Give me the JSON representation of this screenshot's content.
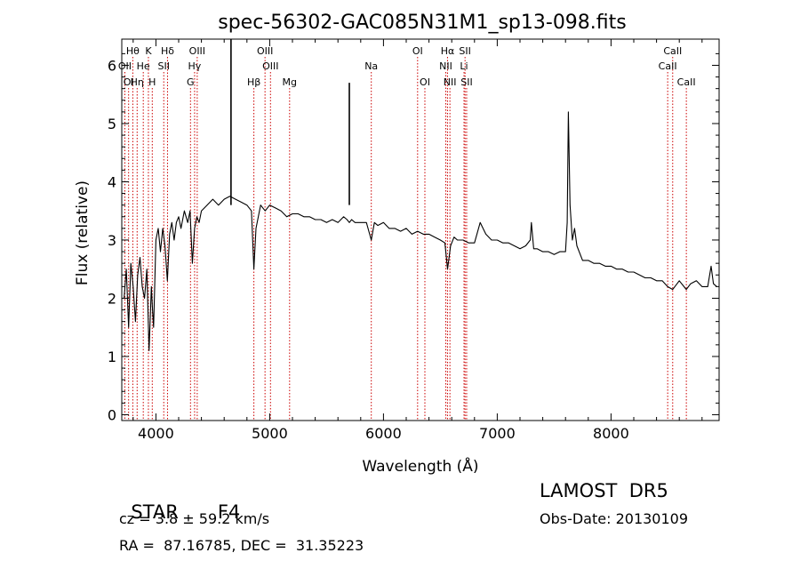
{
  "chart_data": {
    "type": "line",
    "title": "spec-56302-GAC085N31M1_sp13-098.fits",
    "xlabel": "Wavelength (Å)",
    "ylabel": "Flux (relative)",
    "xlim": [
      3700,
      8950
    ],
    "ylim": [
      -0.1,
      6.45
    ],
    "xticks": [
      4000,
      5000,
      6000,
      7000,
      8000
    ],
    "yticks": [
      0,
      1,
      2,
      3,
      4,
      5,
      6
    ],
    "grid": false,
    "line_color": "#000000",
    "marker_color": "#cc0000",
    "series": [
      {
        "x": [
          3720,
          3740,
          3760,
          3780,
          3800,
          3820,
          3840,
          3860,
          3880,
          3900,
          3920,
          3940,
          3960,
          3970,
          3980,
          4000,
          4020,
          4040,
          4060,
          4080,
          4101,
          4120,
          4140,
          4160,
          4180,
          4200,
          4220,
          4250,
          4280,
          4300,
          4320,
          4340,
          4360,
          4380,
          4400,
          4450,
          4500,
          4550,
          4600,
          4650,
          4700,
          4750,
          4800,
          4840,
          4861,
          4880,
          4920,
          4960,
          5000,
          5050,
          5100,
          5150,
          5200,
          5250,
          5300,
          5350,
          5400,
          5450,
          5500,
          5550,
          5600,
          5650,
          5680,
          5700,
          5720,
          5750,
          5800,
          5850,
          5893,
          5920,
          5950,
          6000,
          6050,
          6100,
          6150,
          6200,
          6250,
          6300,
          6350,
          6400,
          6450,
          6500,
          6540,
          6563,
          6590,
          6620,
          6650,
          6700,
          6750,
          6800,
          6850,
          6900,
          6950,
          7000,
          7050,
          7100,
          7150,
          7200,
          7250,
          7290,
          7300,
          7320,
          7350,
          7400,
          7450,
          7500,
          7550,
          7600,
          7615,
          7625,
          7640,
          7660,
          7680,
          7700,
          7750,
          7800,
          7850,
          7900,
          7950,
          8000,
          8050,
          8100,
          8150,
          8200,
          8250,
          8300,
          8350,
          8400,
          8450,
          8498,
          8542,
          8600,
          8662,
          8700,
          8750,
          8800,
          8850,
          8880,
          8900,
          8930
        ],
        "y": [
          2.0,
          2.5,
          1.5,
          2.6,
          2.2,
          1.6,
          2.4,
          2.7,
          2.2,
          2.0,
          2.5,
          1.1,
          2.2,
          1.8,
          1.5,
          3.0,
          3.2,
          2.8,
          3.2,
          2.9,
          2.3,
          3.1,
          3.3,
          3.0,
          3.3,
          3.4,
          3.2,
          3.5,
          3.3,
          3.5,
          2.6,
          3.2,
          3.4,
          3.3,
          3.5,
          3.6,
          3.7,
          3.6,
          3.7,
          3.75,
          3.7,
          3.65,
          3.6,
          3.5,
          2.5,
          3.2,
          3.6,
          3.5,
          3.6,
          3.55,
          3.5,
          3.4,
          3.45,
          3.45,
          3.4,
          3.4,
          3.35,
          3.35,
          3.3,
          3.35,
          3.3,
          3.4,
          3.35,
          3.3,
          3.35,
          3.3,
          3.3,
          3.3,
          3.0,
          3.3,
          3.25,
          3.3,
          3.2,
          3.2,
          3.15,
          3.2,
          3.1,
          3.15,
          3.1,
          3.1,
          3.05,
          3.0,
          2.95,
          2.5,
          2.9,
          3.05,
          3.0,
          3.0,
          2.95,
          2.95,
          3.3,
          3.1,
          3.0,
          3.0,
          2.95,
          2.95,
          2.9,
          2.85,
          2.9,
          3.0,
          3.3,
          2.85,
          2.85,
          2.8,
          2.8,
          2.75,
          2.8,
          2.8,
          3.3,
          5.2,
          3.6,
          3.0,
          3.2,
          2.9,
          2.65,
          2.65,
          2.6,
          2.6,
          2.55,
          2.55,
          2.5,
          2.5,
          2.45,
          2.45,
          2.4,
          2.35,
          2.35,
          2.3,
          2.3,
          2.2,
          2.15,
          2.3,
          2.15,
          2.25,
          2.3,
          2.2,
          2.2,
          2.55,
          2.25,
          2.2
        ]
      }
    ],
    "spikes": [
      {
        "x": 4660,
        "y": 6.45
      },
      {
        "x": 5700,
        "y": 5.7
      }
    ],
    "lines_top_row": [
      {
        "label": "Hθ",
        "x": 3797
      },
      {
        "label": "K",
        "x": 3934
      },
      {
        "label": "Hδ",
        "x": 4102
      },
      {
        "label": "OIII",
        "x": 4363
      },
      {
        "label": "OIII",
        "x": 4959
      },
      {
        "label": "OI",
        "x": 6300
      },
      {
        "label": "Hα",
        "x": 6563
      },
      {
        "label": "SII",
        "x": 6717
      },
      {
        "label": "CaII",
        "x": 8542
      }
    ],
    "lines_mid_row": [
      {
        "label": "OII",
        "x": 3727
      },
      {
        "label": "He",
        "x": 3889
      },
      {
        "label": "SII",
        "x": 4069
      },
      {
        "label": "Hγ",
        "x": 4340
      },
      {
        "label": "OIII",
        "x": 5007
      },
      {
        "label": "Na",
        "x": 5893
      },
      {
        "label": "NII",
        "x": 6548
      },
      {
        "label": "Li",
        "x": 6708
      },
      {
        "label": "CaII",
        "x": 8498
      }
    ],
    "lines_low_row": [
      {
        "label": "OI",
        "x": 3760
      },
      {
        "label": "Hη",
        "x": 3835
      },
      {
        "label": "H",
        "x": 3968
      },
      {
        "label": "G",
        "x": 4304
      },
      {
        "label": "Hβ",
        "x": 4861
      },
      {
        "label": "Mg",
        "x": 5175
      },
      {
        "label": "OI",
        "x": 6364
      },
      {
        "label": "NII",
        "x": 6584
      },
      {
        "label": "SII",
        "x": 6731
      },
      {
        "label": "CaII",
        "x": 8662
      }
    ]
  },
  "info": {
    "object_class": "STAR",
    "subclass": "F4",
    "cz": "cz = 3.8 ± 59.2 km/s",
    "radec": "RA =  87.16785, DEC =  31.35223",
    "survey": "LAMOST  DR5",
    "obs_date": "Obs-Date: 20130109"
  }
}
